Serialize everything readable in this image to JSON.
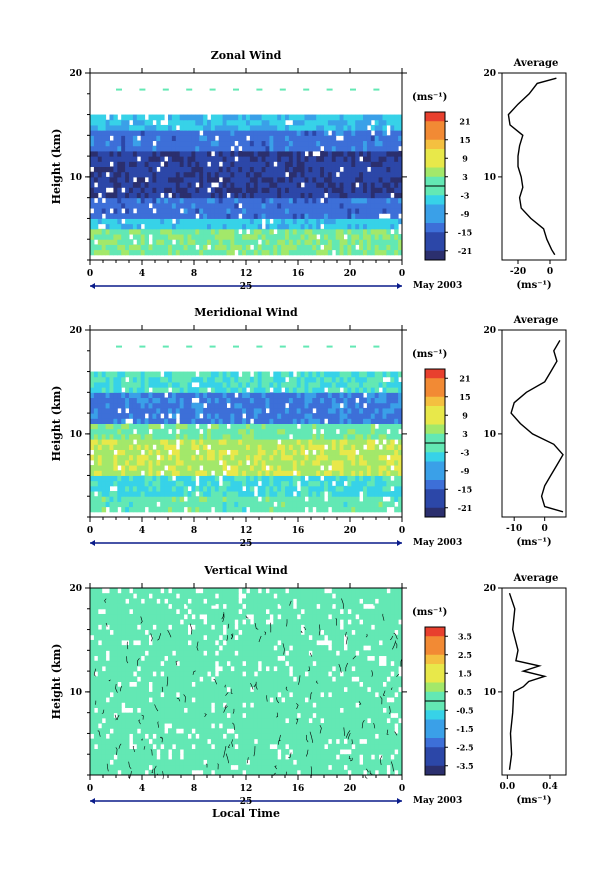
{
  "chart_data": [
    {
      "type": "heatmap",
      "title": "Zonal Wind",
      "xlabel": "",
      "ylabel": "Height (km)",
      "xlim": [
        0,
        24
      ],
      "ylim": [
        2,
        20
      ],
      "x_ticks": [
        "0",
        "4",
        "8",
        "12",
        "16",
        "20",
        "0"
      ],
      "y_ticks": [
        "20",
        "10"
      ],
      "day_label": "25",
      "month_label": "May 2003",
      "colorbar": {
        "unit": "(ms⁻¹)",
        "ticks": [
          "21",
          "15",
          "9",
          "3",
          "-3",
          "-9",
          "-15",
          "-21"
        ],
        "range": [
          -24,
          24
        ]
      },
      "profile_bands": [
        {
          "z": [
            2.5,
            5
          ],
          "value": 2
        },
        {
          "z": [
            5,
            6
          ],
          "value": -5
        },
        {
          "z": [
            6,
            8
          ],
          "value": -13
        },
        {
          "z": [
            8,
            12.5
          ],
          "value": -19
        },
        {
          "z": [
            12.5,
            14.5
          ],
          "value": -13
        },
        {
          "z": [
            14.5,
            16
          ],
          "value": -6
        }
      ],
      "average": {
        "title": "Average",
        "xlabel": "(ms⁻¹)",
        "xlim": [
          -30,
          10
        ],
        "x_ticks": [
          "-20",
          "0"
        ],
        "y_ticks": [
          "20",
          "10"
        ],
        "height": [
          2.5,
          3,
          4,
          5,
          6,
          7,
          8,
          9,
          10,
          11,
          12,
          13,
          14,
          15,
          16,
          17,
          18,
          19,
          19.5
        ],
        "value": [
          3,
          1,
          -2,
          -4,
          -12,
          -18,
          -19,
          -17,
          -18,
          -20,
          -20,
          -19,
          -17,
          -25,
          -26,
          -20,
          -13,
          -8,
          4
        ]
      }
    },
    {
      "type": "heatmap",
      "title": "Meridional Wind",
      "xlabel": "",
      "ylabel": "Height (km)",
      "xlim": [
        0,
        24
      ],
      "ylim": [
        2,
        20
      ],
      "x_ticks": [
        "0",
        "4",
        "8",
        "12",
        "16",
        "20",
        "0"
      ],
      "y_ticks": [
        "20",
        "10"
      ],
      "day_label": "25",
      "month_label": "May 2003",
      "colorbar": {
        "unit": "(ms⁻¹)",
        "ticks": [
          "21",
          "15",
          "9",
          "3",
          "-3",
          "-9",
          "-15",
          "-21"
        ],
        "range": [
          -24,
          24
        ]
      },
      "profile_bands": [
        {
          "z": [
            2.5,
            4
          ],
          "value": 0
        },
        {
          "z": [
            4,
            6
          ],
          "value": -3
        },
        {
          "z": [
            6,
            9.5
          ],
          "value": 6
        },
        {
          "z": [
            9.5,
            11
          ],
          "value": 1
        },
        {
          "z": [
            11,
            14
          ],
          "value": -12
        },
        {
          "z": [
            14,
            16
          ],
          "value": -2
        }
      ],
      "average": {
        "title": "Average",
        "xlabel": "(ms⁻¹)",
        "xlim": [
          -14,
          7
        ],
        "x_ticks": [
          "-10",
          "0"
        ],
        "y_ticks": [
          "20",
          "10"
        ],
        "height": [
          2.5,
          3,
          4,
          5,
          6,
          7,
          8,
          9,
          10,
          11,
          12,
          13,
          14,
          15,
          16,
          17,
          18,
          19
        ],
        "value": [
          6,
          0,
          -1,
          0,
          2,
          4,
          6,
          3,
          -4,
          -8,
          -11,
          -10,
          -6,
          0,
          2,
          4,
          3,
          5
        ]
      }
    },
    {
      "type": "heatmap",
      "title": "Vertical Wind",
      "xlabel": "Local Time",
      "ylabel": "Height (km)",
      "xlim": [
        0,
        24
      ],
      "ylim": [
        2,
        20
      ],
      "x_ticks": [
        "0",
        "4",
        "8",
        "12",
        "16",
        "20",
        "0"
      ],
      "y_ticks": [
        "20",
        "10"
      ],
      "day_label": "25",
      "month_label": "May 2003",
      "colorbar": {
        "unit": "(ms⁻¹)",
        "ticks": [
          "3.5",
          "2.5",
          "1.5",
          "0.5",
          "-0.5",
          "-1.5",
          "-2.5",
          "-3.5"
        ],
        "range": [
          -4,
          4
        ]
      },
      "profile_bands": [
        {
          "z": [
            2,
            20
          ],
          "value": 0.2
        }
      ],
      "average": {
        "title": "Average",
        "xlabel": "(ms⁻¹)",
        "xlim": [
          -0.05,
          0.55
        ],
        "x_ticks": [
          "0.0",
          "0.4"
        ],
        "y_ticks": [
          "20",
          "10"
        ],
        "height": [
          2.5,
          4,
          6,
          8,
          10,
          10.5,
          11,
          11.5,
          12,
          12.5,
          13,
          14,
          16,
          18,
          19.5
        ],
        "value": [
          0.02,
          0.04,
          0.03,
          0.05,
          0.06,
          0.15,
          0.2,
          0.35,
          0.15,
          0.3,
          0.08,
          0.1,
          0.05,
          0.07,
          0.02
        ]
      }
    }
  ]
}
